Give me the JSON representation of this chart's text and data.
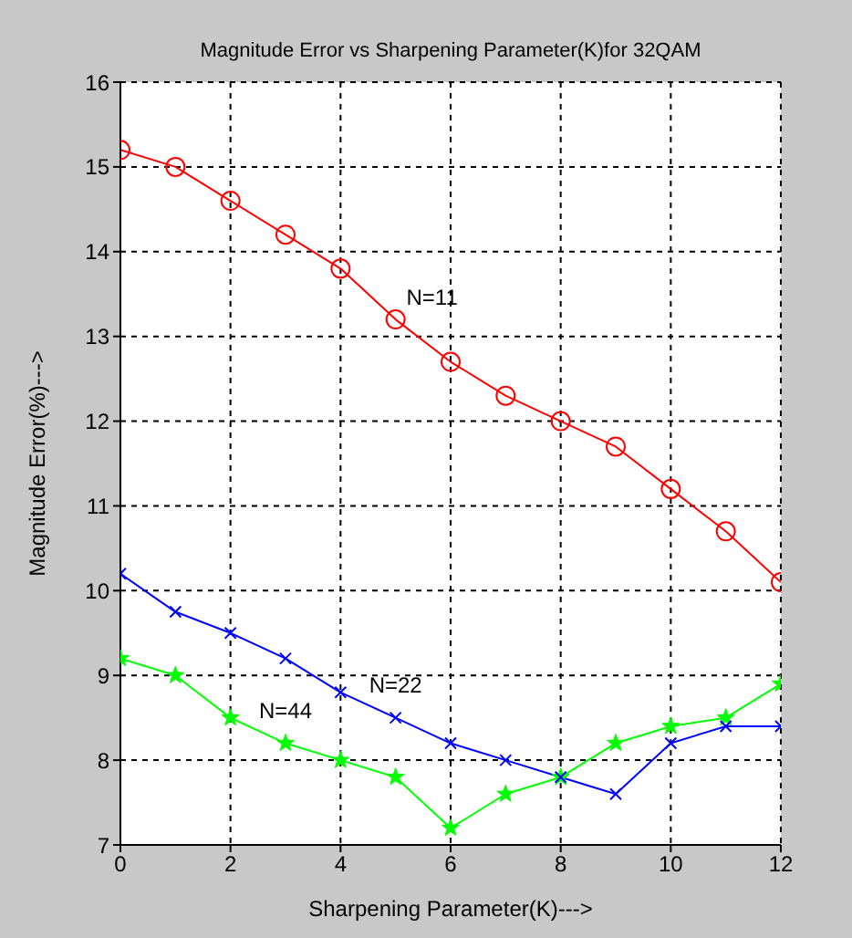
{
  "chart_data": {
    "type": "line",
    "title": "Magnitude Error vs Sharpening Parameter(K)for 32QAM",
    "xlabel": "Sharpening Parameter(K)--->",
    "ylabel": "Magnitude Error(%)--->",
    "x": [
      0,
      1,
      2,
      3,
      4,
      5,
      6,
      7,
      8,
      9,
      10,
      11,
      12
    ],
    "series": [
      {
        "name": "N=11",
        "color": "#ff0000",
        "marker": "circle",
        "values": [
          15.2,
          15.0,
          14.6,
          14.2,
          13.8,
          13.2,
          12.7,
          12.3,
          12.0,
          11.7,
          11.2,
          10.7,
          10.1
        ]
      },
      {
        "name": "N=22",
        "color": "#0000ff",
        "marker": "cross",
        "values": [
          10.2,
          9.75,
          9.5,
          9.2,
          8.8,
          8.5,
          8.2,
          8.0,
          7.8,
          7.6,
          8.2,
          8.4,
          8.4
        ]
      },
      {
        "name": "N=44",
        "color": "#00ff00",
        "marker": "star",
        "values": [
          9.2,
          9.0,
          8.5,
          8.2,
          8.0,
          7.8,
          7.2,
          7.6,
          7.8,
          8.2,
          8.4,
          8.5,
          8.9
        ]
      }
    ],
    "xlim": [
      0,
      12
    ],
    "xticks": [
      0,
      2,
      4,
      6,
      8,
      10,
      12
    ],
    "ylim": [
      7,
      16
    ],
    "yticks": [
      7,
      8,
      9,
      10,
      11,
      12,
      13,
      14,
      15,
      16
    ],
    "grid": true,
    "line_style": "solid"
  }
}
